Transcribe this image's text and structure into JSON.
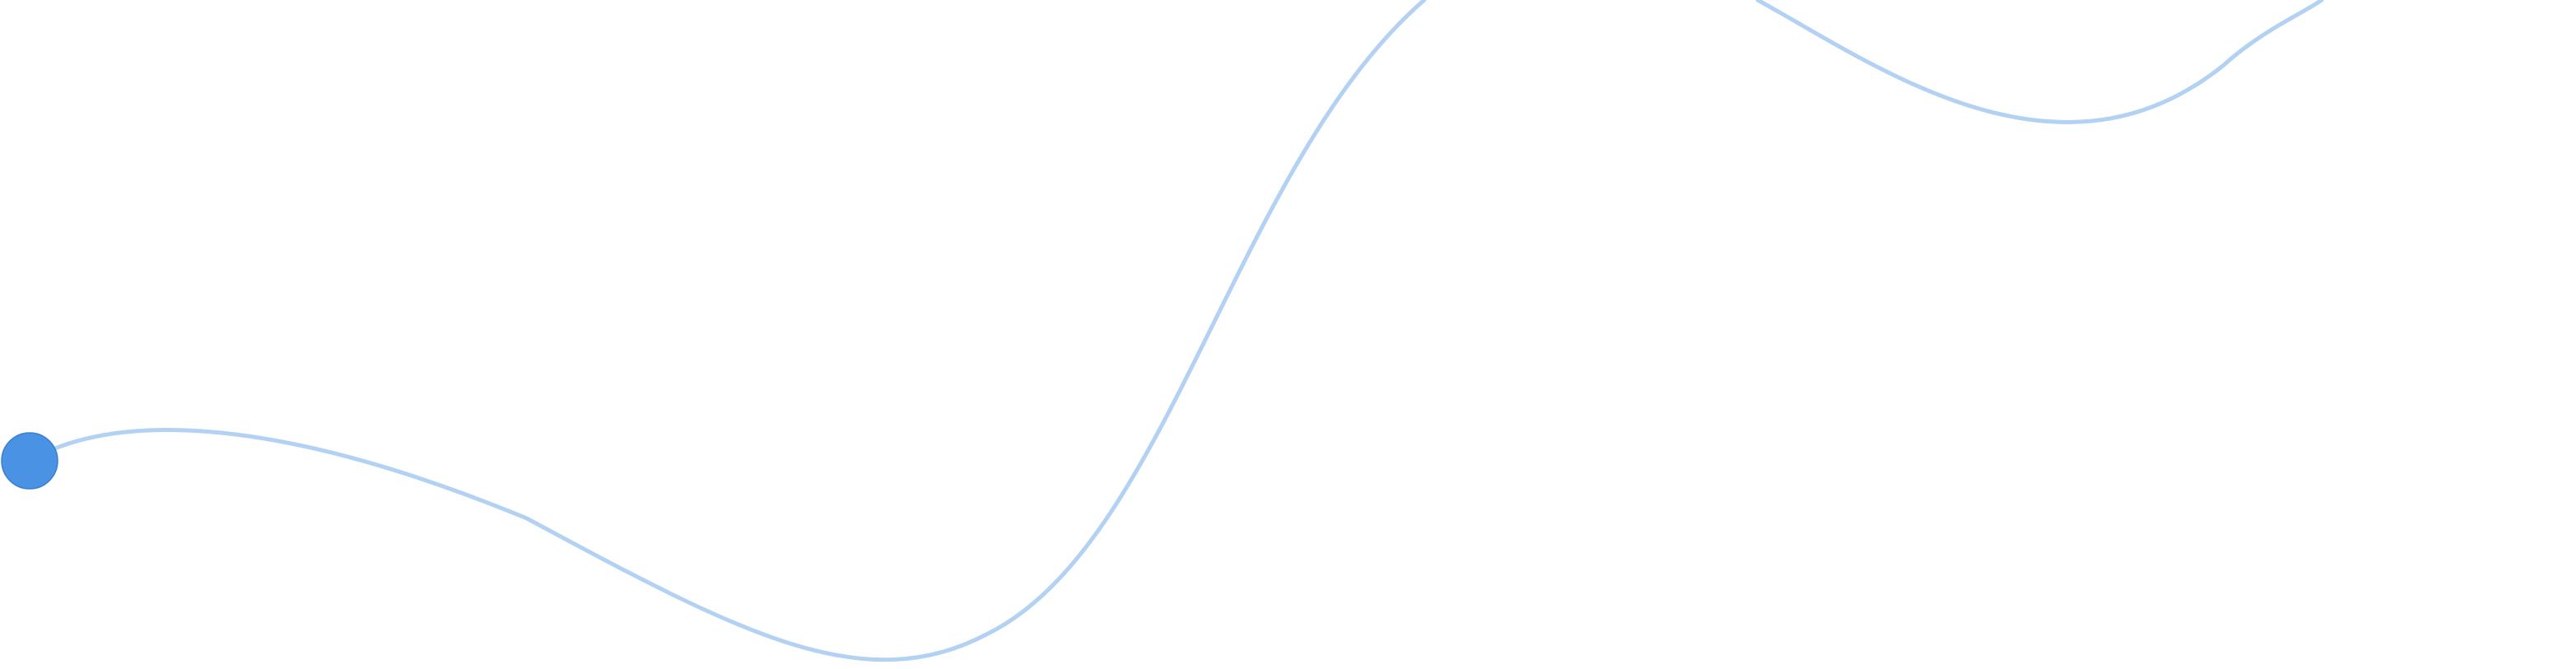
{
  "canvas": {
    "background_color": "#ffffff"
  },
  "path": {
    "name": "wavy-guide-line",
    "stroke_color": "#b3d1f2"
  },
  "marker": {
    "name": "start-point-marker",
    "fill_color": "#4a92e3",
    "stroke_color": "#3b7fcf"
  }
}
